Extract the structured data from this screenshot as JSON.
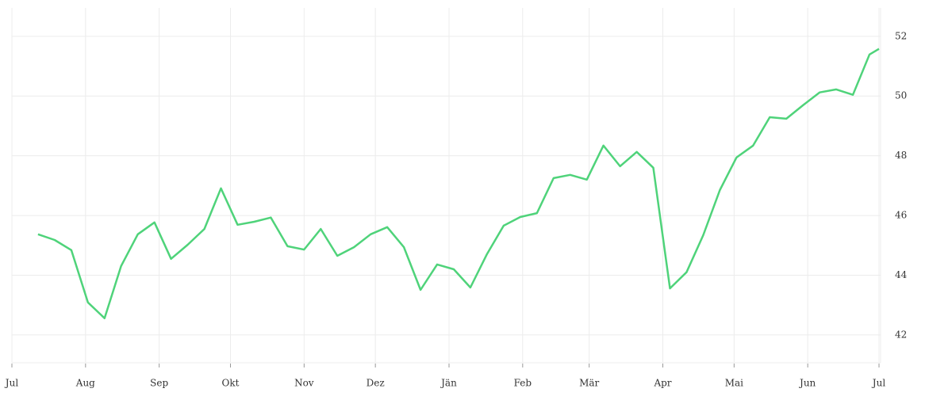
{
  "chart_data": {
    "type": "line",
    "x": [
      11,
      18,
      25,
      32,
      39,
      46,
      53,
      60,
      67,
      74,
      81,
      88,
      95,
      102,
      109,
      116,
      123,
      130,
      137,
      144,
      151,
      158,
      165,
      172,
      179,
      186,
      193,
      200,
      207,
      214,
      221,
      228,
      235,
      242,
      249,
      256,
      263,
      270,
      277,
      284,
      291,
      298,
      305,
      312,
      319,
      326,
      333,
      340,
      347,
      354,
      361,
      365
    ],
    "series": [
      {
        "color": "#4fd37a",
        "values": [
          45.37,
          45.18,
          44.84,
          43.09,
          42.56,
          44.31,
          45.37,
          45.77,
          44.55,
          45.02,
          45.55,
          46.91,
          45.69,
          45.79,
          45.93,
          44.97,
          44.86,
          45.55,
          44.65,
          44.94,
          45.37,
          45.61,
          44.94,
          43.51,
          44.36,
          44.2,
          43.59,
          44.71,
          45.66,
          45.95,
          46.08,
          47.25,
          47.36,
          47.2,
          48.34,
          47.65,
          48.13,
          47.6,
          43.56,
          44.1,
          45.34,
          46.85,
          47.94,
          48.34,
          49.29,
          49.24,
          49.69,
          50.12,
          50.22,
          50.04,
          51.39,
          51.58
        ]
      }
    ],
    "xlim": [
      0,
      365
    ],
    "xticks": [
      {
        "value": 0,
        "label": "Jul"
      },
      {
        "value": 31,
        "label": "Aug"
      },
      {
        "value": 62,
        "label": "Sep"
      },
      {
        "value": 92,
        "label": "Okt"
      },
      {
        "value": 123,
        "label": "Nov"
      },
      {
        "value": 153,
        "label": "Dez"
      },
      {
        "value": 184,
        "label": "Jän"
      },
      {
        "value": 215,
        "label": "Feb"
      },
      {
        "value": 243,
        "label": "Mär"
      },
      {
        "value": 274,
        "label": "Apr"
      },
      {
        "value": 304,
        "label": "Mai"
      },
      {
        "value": 335,
        "label": "Jun"
      },
      {
        "value": 365,
        "label": "Jul"
      }
    ],
    "ylim": [
      41.07,
      52.95
    ],
    "yticks": [
      42,
      44,
      46,
      48,
      50,
      52
    ],
    "grid": true
  }
}
